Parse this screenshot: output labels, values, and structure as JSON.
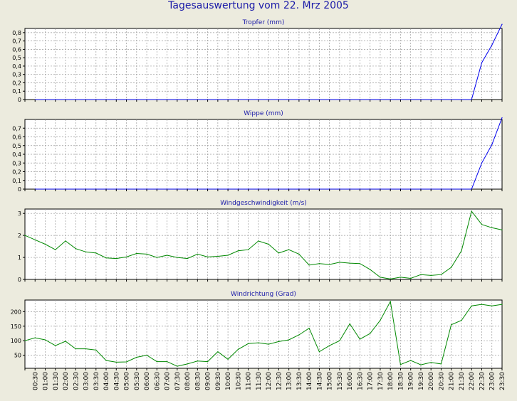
{
  "title": "Tagesauswertung vom 22. Mrz 2005",
  "colors": {
    "background": "#ecebde",
    "title": "#1a1aa8",
    "panel_title": "#1a1aa8",
    "grid": "#9a9a9a",
    "rain_line": "#0000ee",
    "wind_line": "#008800"
  },
  "x_tick_labels": [
    "00:30",
    "01:00",
    "01:30",
    "02:00",
    "02:30",
    "03:00",
    "03:30",
    "04:00",
    "04:30",
    "05:00",
    "05:30",
    "06:00",
    "06:30",
    "07:00",
    "07:30",
    "08:00",
    "08:30",
    "09:00",
    "09:30",
    "10:00",
    "10:30",
    "11:00",
    "11:30",
    "12:00",
    "12:30",
    "13:00",
    "13:30",
    "14:00",
    "14:30",
    "15:00",
    "15:30",
    "16:00",
    "16:30",
    "17:00",
    "17:30",
    "18:00",
    "18:30",
    "19:00",
    "19:30",
    "20:00",
    "20:30",
    "21:00",
    "21:30",
    "22:00",
    "22:30",
    "23:00",
    "23:30"
  ],
  "chart_data": [
    {
      "type": "line",
      "title": "Tropfer (mm)",
      "ylim": [
        0,
        0.85
      ],
      "yticks": [
        0,
        0.1,
        0.2,
        0.3,
        0.4,
        0.5,
        0.6,
        0.7,
        0.8
      ],
      "ytick_labels": [
        "0",
        "0,1",
        "0,2",
        "0,3",
        "0,4",
        "0,5",
        "0,6",
        "0,7",
        "0,8"
      ],
      "grid": true,
      "series": [
        {
          "color": "#0000ee",
          "x": [
            "00:30",
            "01:00",
            "01:30",
            "02:00",
            "02:30",
            "03:00",
            "03:30",
            "04:00",
            "04:30",
            "05:00",
            "05:30",
            "06:00",
            "06:30",
            "07:00",
            "07:30",
            "08:00",
            "08:30",
            "09:00",
            "09:30",
            "10:00",
            "10:30",
            "11:00",
            "11:30",
            "12:00",
            "12:30",
            "13:00",
            "13:30",
            "14:00",
            "14:30",
            "15:00",
            "15:30",
            "16:00",
            "16:30",
            "17:00",
            "17:30",
            "18:00",
            "18:30",
            "19:00",
            "19:30",
            "20:00",
            "20:30",
            "21:00",
            "21:30",
            "22:00",
            "22:30",
            "23:00",
            "23:30"
          ],
          "values": [
            0,
            0,
            0,
            0,
            0,
            0,
            0,
            0,
            0,
            0,
            0,
            0,
            0,
            0,
            0,
            0,
            0,
            0,
            0,
            0,
            0,
            0,
            0,
            0,
            0,
            0,
            0,
            0,
            0,
            0,
            0,
            0,
            0,
            0,
            0,
            0,
            0,
            0,
            0,
            0,
            0,
            0,
            0,
            0,
            0.44,
            0.65,
            0.9
          ]
        }
      ]
    },
    {
      "type": "line",
      "title": "Wippe (mm)",
      "ylim": [
        0,
        0.8
      ],
      "yticks": [
        0,
        0.1,
        0.2,
        0.3,
        0.4,
        0.5,
        0.6,
        0.7
      ],
      "ytick_labels": [
        "0",
        "0,1",
        "0,2",
        "0,3",
        "0,4",
        "0,5",
        "0,6",
        "0,7"
      ],
      "grid": true,
      "series": [
        {
          "color": "#0000ee",
          "x": [
            "00:30",
            "01:00",
            "01:30",
            "02:00",
            "02:30",
            "03:00",
            "03:30",
            "04:00",
            "04:30",
            "05:00",
            "05:30",
            "06:00",
            "06:30",
            "07:00",
            "07:30",
            "08:00",
            "08:30",
            "09:00",
            "09:30",
            "10:00",
            "10:30",
            "11:00",
            "11:30",
            "12:00",
            "12:30",
            "13:00",
            "13:30",
            "14:00",
            "14:30",
            "15:00",
            "15:30",
            "16:00",
            "16:30",
            "17:00",
            "17:30",
            "18:00",
            "18:30",
            "19:00",
            "19:30",
            "20:00",
            "20:30",
            "21:00",
            "21:30",
            "22:00",
            "22:30",
            "23:00",
            "23:30"
          ],
          "values": [
            0,
            0,
            0,
            0,
            0,
            0,
            0,
            0,
            0,
            0,
            0,
            0,
            0,
            0,
            0,
            0,
            0,
            0,
            0,
            0,
            0,
            0,
            0,
            0,
            0,
            0,
            0,
            0,
            0,
            0,
            0,
            0,
            0,
            0,
            0,
            0,
            0,
            0,
            0,
            0,
            0,
            0,
            0,
            0,
            0.3,
            0.51,
            0.82
          ]
        }
      ]
    },
    {
      "type": "line",
      "title": "Windgeschwindigkeit (m/s)",
      "ylim": [
        0,
        3.2
      ],
      "yticks": [
        0,
        1,
        2,
        3
      ],
      "ytick_labels": [
        "0",
        "1",
        "2",
        "3"
      ],
      "grid": true,
      "series": [
        {
          "color": "#008800",
          "x": [
            "00:00",
            "00:30",
            "01:00",
            "01:30",
            "02:00",
            "02:30",
            "03:00",
            "03:30",
            "04:00",
            "04:30",
            "05:00",
            "05:30",
            "06:00",
            "06:30",
            "07:00",
            "07:30",
            "08:00",
            "08:30",
            "09:00",
            "09:30",
            "10:00",
            "10:30",
            "11:00",
            "11:30",
            "12:00",
            "12:30",
            "13:00",
            "13:30",
            "14:00",
            "14:30",
            "15:00",
            "15:30",
            "16:00",
            "16:30",
            "17:00",
            "17:30",
            "18:00",
            "18:30",
            "19:00",
            "19:30",
            "20:00",
            "20:30",
            "21:00",
            "21:30",
            "22:00",
            "22:30",
            "23:00",
            "23:30"
          ],
          "values": [
            2.0,
            1.8,
            1.6,
            1.35,
            1.75,
            1.4,
            1.25,
            1.2,
            0.98,
            0.95,
            1.02,
            1.18,
            1.15,
            1.0,
            1.1,
            1.0,
            0.95,
            1.15,
            1.02,
            1.05,
            1.1,
            1.3,
            1.35,
            1.75,
            1.6,
            1.2,
            1.35,
            1.15,
            0.65,
            0.72,
            0.68,
            0.78,
            0.74,
            0.72,
            0.45,
            0.1,
            0.02,
            0.1,
            0.05,
            0.22,
            0.18,
            0.22,
            0.55,
            1.3,
            3.1,
            2.5,
            2.35,
            2.25
          ]
        }
      ]
    },
    {
      "type": "line",
      "title": "Windrichtung (Grad)",
      "ylim": [
        5,
        240
      ],
      "yticks": [
        50,
        100,
        150,
        200
      ],
      "ytick_labels": [
        "50",
        "100",
        "150",
        "200"
      ],
      "grid": true,
      "series": [
        {
          "color": "#008800",
          "x": [
            "00:00",
            "00:30",
            "01:00",
            "01:30",
            "02:00",
            "02:30",
            "03:00",
            "03:30",
            "04:00",
            "04:30",
            "05:00",
            "05:30",
            "06:00",
            "06:30",
            "07:00",
            "07:30",
            "08:00",
            "08:30",
            "09:00",
            "09:30",
            "10:00",
            "10:30",
            "11:00",
            "11:30",
            "12:00",
            "12:30",
            "13:00",
            "13:30",
            "14:00",
            "14:30",
            "15:00",
            "15:30",
            "16:00",
            "16:30",
            "17:00",
            "17:30",
            "18:00",
            "18:30",
            "19:00",
            "19:30",
            "20:00",
            "20:30",
            "21:00",
            "21:30",
            "22:00",
            "22:30",
            "23:00",
            "23:30"
          ],
          "values": [
            100,
            110,
            103,
            83,
            98,
            72,
            72,
            68,
            32,
            26,
            27,
            43,
            50,
            28,
            28,
            12,
            20,
            30,
            28,
            62,
            36,
            70,
            90,
            93,
            88,
            97,
            103,
            120,
            143,
            62,
            83,
            100,
            158,
            105,
            125,
            170,
            235,
            18,
            32,
            17,
            25,
            20,
            155,
            170,
            220,
            225,
            220,
            225
          ]
        }
      ]
    }
  ]
}
